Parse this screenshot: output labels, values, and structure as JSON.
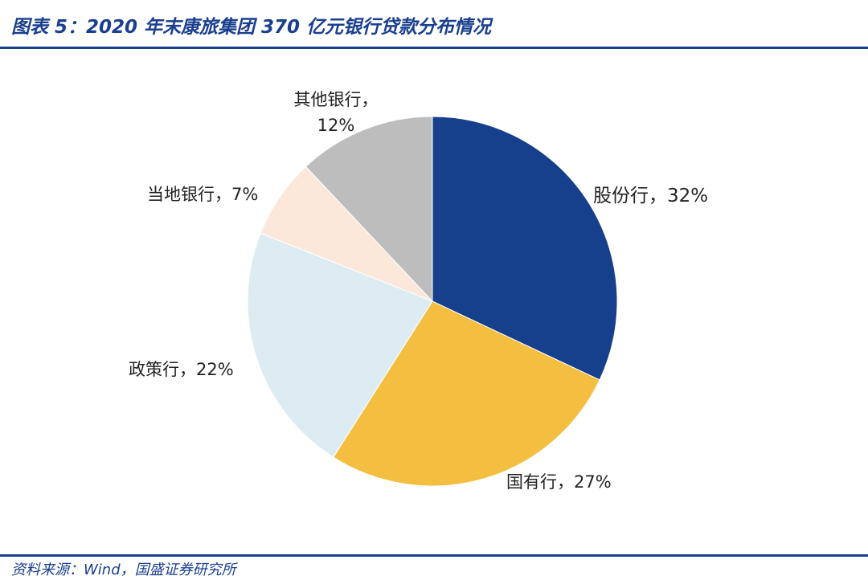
{
  "header": {
    "title": "图表 5：2020 年末康旅集团 370 亿元银行贷款分布情况"
  },
  "footer": {
    "source": "资料来源：Wind，国盛证券研究所"
  },
  "chart_data": {
    "type": "pie",
    "start_angle_deg": 0,
    "direction": "clockwise",
    "legend": "none",
    "slices": [
      {
        "name": "股份行",
        "value": 32,
        "label": "股份行，32%",
        "color": "#163f8c"
      },
      {
        "name": "国有行",
        "value": 27,
        "label": "国有行，27%",
        "color": "#f4be41"
      },
      {
        "name": "政策行",
        "value": 22,
        "label": "政策行，22%",
        "color": "#ddecf3"
      },
      {
        "name": "当地银行",
        "value": 7,
        "label": "当地银行，7%",
        "color": "#fbe8da"
      },
      {
        "name": "其他银行",
        "value": 12,
        "label_lines": [
          "其他银行，",
          "12%"
        ],
        "color": "#bdbdbd"
      }
    ]
  }
}
